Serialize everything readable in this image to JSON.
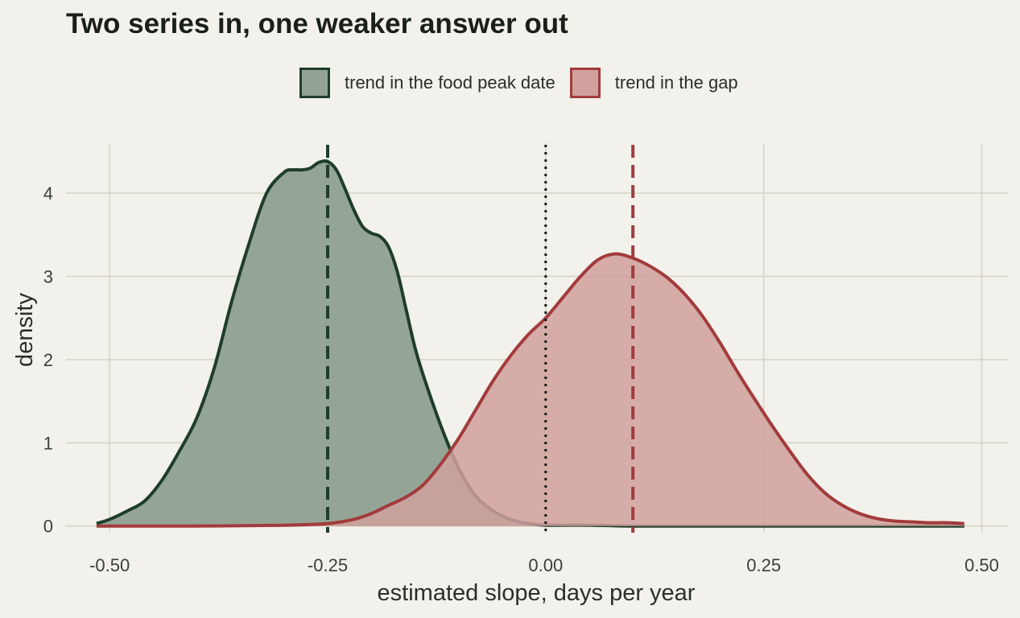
{
  "chart_data": {
    "type": "area",
    "title": "Two series in, one weaker answer out",
    "xlabel": "estimated slope, days per year",
    "ylabel": "density",
    "xlim": [
      -0.55,
      0.53
    ],
    "ylim": [
      -0.08,
      4.6
    ],
    "x_ticks": [
      -0.5,
      -0.25,
      0.0,
      0.25,
      0.5
    ],
    "x_tick_labels": [
      "-0.50",
      "-0.25",
      "0.00",
      "0.25",
      "0.50"
    ],
    "y_ticks": [
      0,
      1,
      2,
      3,
      4
    ],
    "y_tick_labels": [
      "0",
      "1",
      "2",
      "3",
      "4"
    ],
    "grid": true,
    "legend_position": "top",
    "zero_reference_line": 0.0,
    "series": [
      {
        "name": "trend in the food peak date",
        "fill_color": "#93a393",
        "line_color": "#1f3d2b",
        "mean_line": -0.25,
        "x": [
          -0.515,
          -0.5,
          -0.48,
          -0.46,
          -0.44,
          -0.42,
          -0.4,
          -0.38,
          -0.36,
          -0.34,
          -0.32,
          -0.3,
          -0.29,
          -0.28,
          -0.27,
          -0.26,
          -0.25,
          -0.24,
          -0.23,
          -0.22,
          -0.21,
          -0.2,
          -0.19,
          -0.18,
          -0.17,
          -0.16,
          -0.15,
          -0.14,
          -0.12,
          -0.1,
          -0.08,
          -0.06,
          -0.04,
          -0.02,
          0.0,
          0.02,
          0.05,
          0.1,
          0.2,
          0.3,
          0.4,
          0.48
        ],
        "y": [
          0.03,
          0.08,
          0.18,
          0.3,
          0.55,
          0.9,
          1.3,
          1.9,
          2.7,
          3.4,
          4.0,
          4.25,
          4.28,
          4.28,
          4.3,
          4.37,
          4.38,
          4.28,
          4.05,
          3.8,
          3.6,
          3.52,
          3.48,
          3.35,
          3.05,
          2.6,
          2.15,
          1.8,
          1.2,
          0.7,
          0.36,
          0.18,
          0.08,
          0.03,
          0.01,
          0.01,
          0.01,
          0.0,
          0.0,
          0.0,
          0.0,
          0.0
        ]
      },
      {
        "name": "trend in the gap",
        "fill_color": "#d0a09d",
        "line_color": "#a23b3c",
        "mean_line": 0.1,
        "x": [
          -0.515,
          -0.4,
          -0.3,
          -0.25,
          -0.22,
          -0.2,
          -0.18,
          -0.16,
          -0.14,
          -0.12,
          -0.1,
          -0.08,
          -0.06,
          -0.04,
          -0.02,
          0.0,
          0.02,
          0.04,
          0.06,
          0.08,
          0.1,
          0.12,
          0.14,
          0.16,
          0.18,
          0.2,
          0.22,
          0.24,
          0.26,
          0.28,
          0.3,
          0.32,
          0.34,
          0.36,
          0.38,
          0.4,
          0.42,
          0.44,
          0.46,
          0.48
        ],
        "y": [
          0.0,
          0.0,
          0.01,
          0.03,
          0.08,
          0.15,
          0.25,
          0.35,
          0.5,
          0.75,
          1.05,
          1.4,
          1.75,
          2.05,
          2.3,
          2.5,
          2.75,
          3.0,
          3.2,
          3.27,
          3.22,
          3.12,
          2.98,
          2.78,
          2.52,
          2.2,
          1.85,
          1.52,
          1.2,
          0.9,
          0.62,
          0.4,
          0.25,
          0.15,
          0.09,
          0.06,
          0.05,
          0.04,
          0.04,
          0.03
        ]
      }
    ]
  }
}
